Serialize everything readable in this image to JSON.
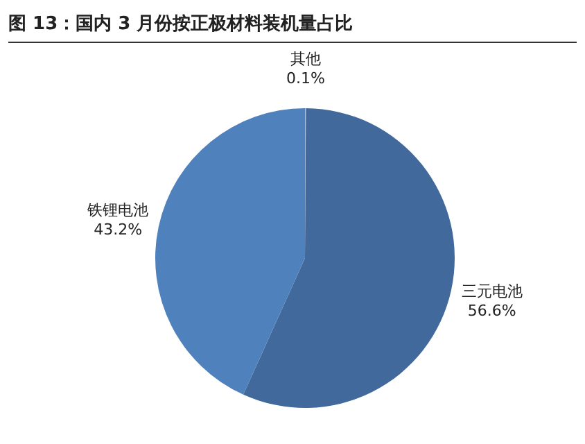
{
  "chart_data": {
    "type": "pie",
    "title": "图 13：国内 3 月份按正极材料装机量占比",
    "categories": [
      "其他",
      "三元电池",
      "铁锂电池"
    ],
    "values": [
      0.1,
      56.6,
      43.2
    ],
    "value_labels": [
      "0.1%",
      "56.6%",
      "43.2%"
    ],
    "colors": [
      "#a9bfdf",
      "#41699b",
      "#4f81bd"
    ],
    "legend": false
  }
}
